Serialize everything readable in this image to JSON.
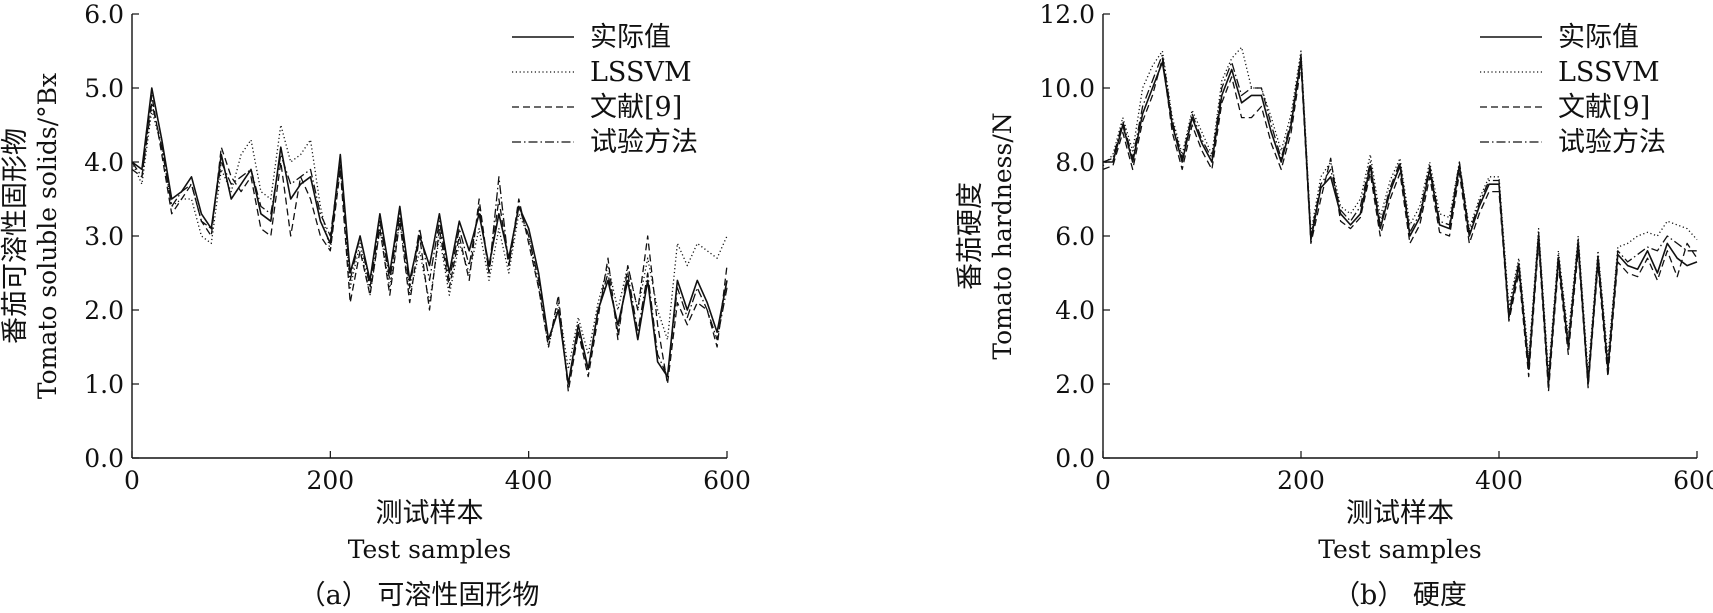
{
  "chart_data": [
    {
      "type": "line",
      "caption": "（a） 可溶性固形物",
      "xlabel_cn": "测试样本",
      "xlabel_en": "Test samples",
      "ylabel_cn": "番茄可溶性固形物",
      "ylabel_en": "Tomato soluble solids/°Bx",
      "xlim": [
        0,
        600
      ],
      "ylim": [
        0,
        6
      ],
      "xticks": [
        "0",
        "200",
        "400",
        "600"
      ],
      "yticks": [
        "0.0",
        "1.0",
        "2.0",
        "3.0",
        "4.0",
        "5.0",
        "6.0"
      ],
      "legend_position": "top-right",
      "x": [
        0,
        10,
        20,
        30,
        40,
        50,
        60,
        70,
        80,
        90,
        100,
        110,
        120,
        130,
        140,
        150,
        160,
        170,
        180,
        190,
        200,
        210,
        220,
        230,
        240,
        250,
        260,
        270,
        280,
        290,
        300,
        310,
        320,
        330,
        340,
        350,
        360,
        370,
        380,
        390,
        400,
        410,
        420,
        430,
        440,
        450,
        460,
        470,
        480,
        490,
        500,
        510,
        520,
        530,
        540,
        550,
        560,
        570,
        580,
        590,
        600
      ],
      "series": [
        {
          "name": "实际值",
          "style": "solid",
          "values": [
            4.0,
            3.9,
            5.0,
            4.3,
            3.5,
            3.6,
            3.8,
            3.3,
            3.1,
            4.1,
            3.5,
            3.7,
            3.9,
            3.3,
            3.2,
            4.2,
            3.5,
            3.7,
            3.8,
            3.2,
            2.9,
            4.1,
            2.5,
            3.0,
            2.4,
            3.3,
            2.5,
            3.4,
            2.4,
            3.0,
            2.6,
            3.3,
            2.5,
            3.2,
            2.8,
            3.3,
            2.6,
            3.3,
            2.7,
            3.4,
            3.1,
            2.5,
            1.6,
            2.0,
            1.0,
            1.8,
            1.2,
            2.0,
            2.4,
            1.8,
            2.4,
            1.6,
            2.4,
            1.3,
            1.1,
            2.4,
            2.0,
            2.4,
            2.1,
            1.7,
            2.4
          ]
        },
        {
          "name": "LSSVM",
          "style": "dotted",
          "values": [
            4.0,
            3.7,
            4.7,
            4.2,
            3.4,
            3.5,
            3.5,
            3.0,
            2.9,
            3.9,
            3.6,
            4.1,
            4.3,
            3.6,
            3.5,
            4.5,
            4.0,
            4.1,
            4.3,
            3.4,
            2.8,
            4.0,
            2.3,
            2.9,
            2.2,
            3.1,
            2.3,
            3.2,
            2.2,
            2.8,
            2.1,
            3.0,
            2.2,
            2.9,
            2.5,
            3.1,
            2.4,
            3.1,
            2.5,
            3.3,
            3.0,
            2.3,
            1.5,
            2.1,
            1.2,
            1.9,
            1.4,
            2.1,
            2.6,
            2.0,
            2.6,
            2.0,
            2.7,
            2.0,
            1.6,
            2.9,
            2.6,
            2.9,
            2.8,
            2.7,
            3.0
          ]
        },
        {
          "name": "文献[9]",
          "style": "dashed",
          "values": [
            3.9,
            3.8,
            4.9,
            4.1,
            3.3,
            3.5,
            3.7,
            3.2,
            3.0,
            4.2,
            3.8,
            3.6,
            3.8,
            3.1,
            3.0,
            4.0,
            3.0,
            3.8,
            3.5,
            3.0,
            2.8,
            3.9,
            2.1,
            2.8,
            2.2,
            3.1,
            2.2,
            3.2,
            2.1,
            3.0,
            2.0,
            3.1,
            2.3,
            3.0,
            2.4,
            3.5,
            2.5,
            3.5,
            2.6,
            3.5,
            2.9,
            2.3,
            1.5,
            2.2,
            0.9,
            1.7,
            1.1,
            1.9,
            2.7,
            1.6,
            2.6,
            2.0,
            3.0,
            1.8,
            1.0,
            2.1,
            1.8,
            2.1,
            2.0,
            1.5,
            2.6
          ]
        },
        {
          "name": "试验方法",
          "style": "dashdot",
          "values": [
            4.0,
            3.8,
            4.8,
            4.2,
            3.4,
            3.6,
            3.7,
            3.2,
            3.1,
            4.0,
            3.7,
            3.8,
            3.9,
            3.4,
            3.3,
            4.1,
            3.7,
            3.8,
            3.9,
            3.3,
            3.0,
            4.0,
            2.4,
            3.0,
            2.3,
            3.2,
            2.4,
            3.3,
            2.3,
            3.1,
            2.4,
            3.2,
            2.4,
            3.1,
            2.6,
            3.4,
            2.5,
            3.8,
            2.6,
            3.4,
            3.0,
            2.4,
            1.6,
            2.0,
            1.0,
            1.7,
            1.2,
            2.0,
            2.5,
            1.7,
            2.5,
            1.7,
            2.5,
            1.4,
            1.1,
            2.3,
            1.9,
            2.3,
            2.0,
            1.6,
            2.3
          ]
        }
      ]
    },
    {
      "type": "line",
      "caption": "（b） 硬度",
      "xlabel_cn": "测试样本",
      "xlabel_en": "Test samples",
      "ylabel_cn": "番茄硬度",
      "ylabel_en": "Tomato hardness/N",
      "xlim": [
        0,
        600
      ],
      "ylim": [
        0,
        12
      ],
      "xticks": [
        "0",
        "200",
        "400",
        "600"
      ],
      "yticks": [
        "0.0",
        "2.0",
        "4.0",
        "6.0",
        "8.0",
        "10.0",
        "12.0"
      ],
      "legend_position": "top-right",
      "x": [
        0,
        10,
        20,
        30,
        40,
        50,
        60,
        70,
        80,
        90,
        100,
        110,
        120,
        130,
        140,
        150,
        160,
        170,
        180,
        190,
        200,
        210,
        220,
        230,
        240,
        250,
        260,
        270,
        280,
        290,
        300,
        310,
        320,
        330,
        340,
        350,
        360,
        370,
        380,
        390,
        400,
        410,
        420,
        430,
        440,
        450,
        460,
        470,
        480,
        490,
        500,
        510,
        520,
        530,
        540,
        550,
        560,
        570,
        580,
        590,
        600
      ],
      "series": [
        {
          "name": "实际值",
          "style": "solid",
          "values": [
            8.0,
            8.0,
            9.0,
            8.0,
            9.3,
            10.0,
            10.7,
            9.0,
            8.0,
            9.2,
            8.5,
            8.0,
            9.8,
            10.5,
            9.6,
            9.8,
            9.8,
            8.8,
            8.0,
            9.0,
            10.8,
            5.9,
            7.3,
            7.6,
            6.6,
            6.3,
            6.6,
            7.9,
            6.2,
            7.2,
            7.9,
            6.0,
            6.5,
            7.8,
            6.3,
            6.2,
            7.9,
            6.0,
            6.8,
            7.4,
            7.4,
            3.8,
            5.2,
            2.4,
            6.0,
            2.0,
            5.4,
            3.0,
            5.8,
            2.0,
            5.4,
            2.4,
            5.5,
            5.2,
            5.1,
            5.6,
            5.0,
            5.8,
            5.4,
            5.2,
            5.3
          ]
        },
        {
          "name": "LSSVM",
          "style": "dotted",
          "values": [
            7.9,
            8.2,
            9.2,
            8.3,
            10.0,
            10.6,
            11.0,
            9.2,
            8.2,
            9.4,
            8.8,
            8.2,
            10.2,
            10.8,
            11.1,
            10.0,
            10.0,
            9.2,
            8.3,
            9.3,
            11.0,
            6.1,
            7.6,
            8.0,
            6.8,
            6.6,
            7.0,
            8.2,
            6.5,
            7.5,
            8.1,
            6.3,
            6.8,
            8.0,
            6.6,
            6.5,
            8.0,
            6.2,
            7.0,
            7.6,
            7.6,
            4.1,
            5.4,
            2.7,
            6.2,
            2.3,
            5.6,
            3.3,
            6.0,
            2.3,
            5.6,
            2.7,
            5.7,
            5.8,
            6.0,
            6.1,
            6.0,
            6.4,
            6.3,
            6.2,
            5.9
          ]
        },
        {
          "name": "文献[9]",
          "style": "dashed",
          "values": [
            7.8,
            7.9,
            8.8,
            7.8,
            9.1,
            9.8,
            10.8,
            8.8,
            7.8,
            9.0,
            8.3,
            7.8,
            9.6,
            10.3,
            9.2,
            9.2,
            9.5,
            8.5,
            7.8,
            8.8,
            10.6,
            5.8,
            7.0,
            8.1,
            6.4,
            6.2,
            6.5,
            7.7,
            6.0,
            7.0,
            7.7,
            5.8,
            6.3,
            7.6,
            6.1,
            6.0,
            7.7,
            5.8,
            6.6,
            7.2,
            7.2,
            3.7,
            5.0,
            2.2,
            5.8,
            1.8,
            5.2,
            2.8,
            5.6,
            1.9,
            5.2,
            2.2,
            5.3,
            5.0,
            4.9,
            5.4,
            4.8,
            5.6,
            4.9,
            5.8,
            5.4
          ]
        },
        {
          "name": "试验方法",
          "style": "dashdot",
          "values": [
            8.0,
            8.1,
            9.1,
            8.1,
            9.5,
            10.2,
            10.9,
            9.1,
            8.1,
            9.3,
            8.6,
            8.1,
            10.0,
            10.7,
            9.8,
            10.0,
            10.0,
            9.0,
            8.1,
            9.1,
            10.9,
            6.0,
            7.4,
            7.8,
            6.7,
            6.4,
            6.8,
            8.0,
            6.3,
            7.3,
            8.0,
            6.1,
            6.6,
            7.9,
            6.4,
            6.3,
            8.0,
            6.1,
            6.9,
            7.5,
            7.5,
            3.9,
            5.3,
            2.5,
            6.1,
            2.1,
            5.5,
            3.1,
            5.9,
            2.1,
            5.5,
            2.5,
            5.6,
            5.3,
            5.5,
            5.7,
            5.6,
            6.0,
            5.8,
            5.6,
            5.6
          ]
        }
      ]
    }
  ]
}
